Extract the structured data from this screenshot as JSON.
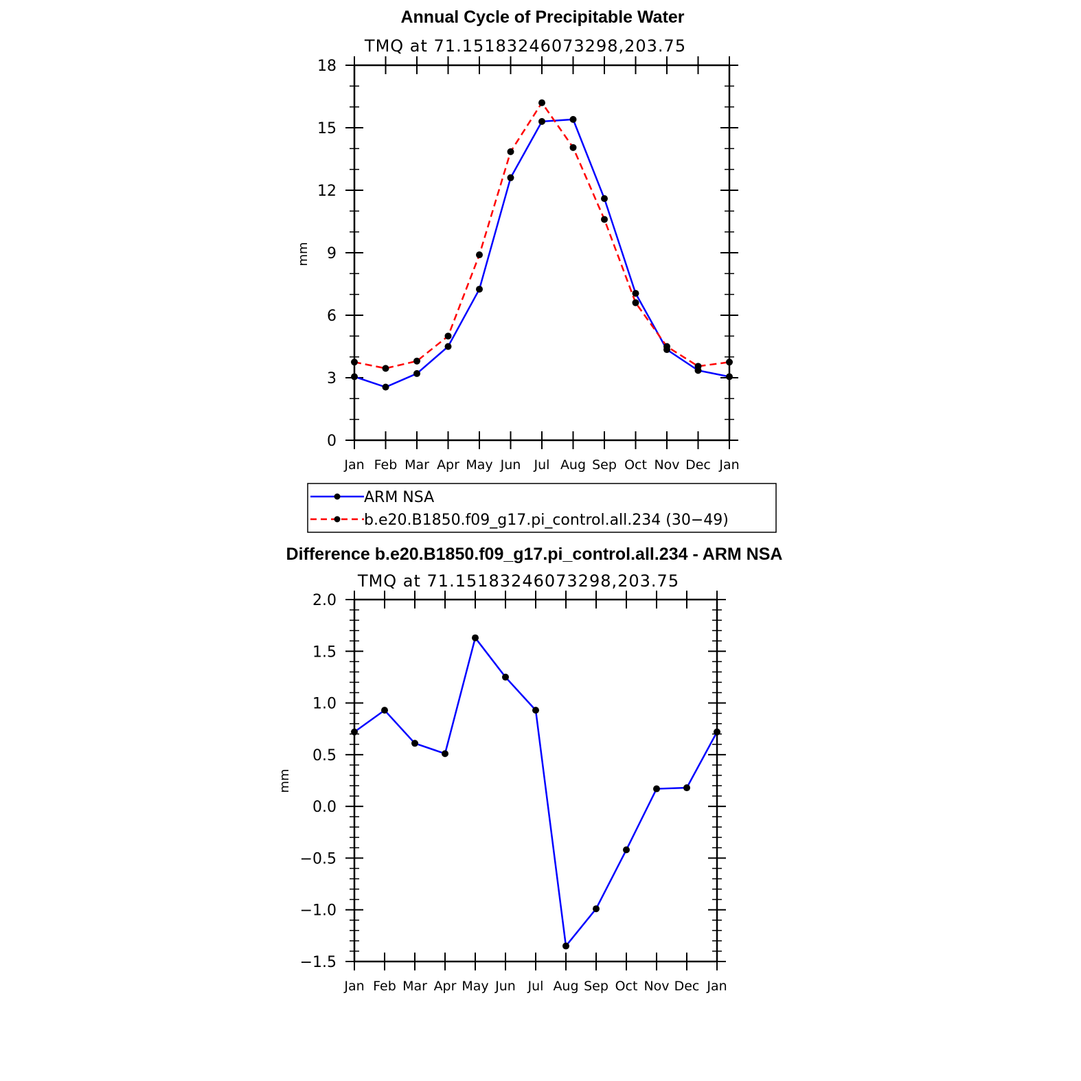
{
  "chart_data": [
    {
      "type": "line",
      "title": "Annual Cycle of Precipitable Water",
      "subtitle": "TMQ at 71.15183246073298,203.75",
      "xlabel": "",
      "ylabel": "mm",
      "categories": [
        "Jan",
        "Feb",
        "Mar",
        "Apr",
        "May",
        "Jun",
        "Jul",
        "Aug",
        "Sep",
        "Oct",
        "Nov",
        "Dec",
        "Jan"
      ],
      "ylim": [
        0,
        18
      ],
      "yticks": [
        "0",
        "3",
        "6",
        "9",
        "12",
        "15",
        "18"
      ],
      "grid": false,
      "legend": "bottom",
      "series": [
        {
          "name": "ARM NSA",
          "color": "#0000ff",
          "dash": "solid",
          "values": [
            3.05,
            2.55,
            3.2,
            4.5,
            7.25,
            12.6,
            15.3,
            15.4,
            11.6,
            7.05,
            4.35,
            3.35,
            3.05
          ]
        },
        {
          "name": "b.e20.B1850.f09_g17.pi_control.all.234 (30−49)",
          "color": "#ff0000",
          "dash": "dashed",
          "values": [
            3.75,
            3.45,
            3.8,
            5.0,
            8.9,
            13.85,
            16.2,
            14.05,
            10.6,
            6.6,
            4.5,
            3.55,
            3.75
          ]
        }
      ]
    },
    {
      "type": "line",
      "title": "Difference b.e20.B1850.f09_g17.pi_control.all.234 - ARM NSA",
      "subtitle": "TMQ at 71.15183246073298,203.75",
      "xlabel": "",
      "ylabel": "mm",
      "categories": [
        "Jan",
        "Feb",
        "Mar",
        "Apr",
        "May",
        "Jun",
        "Jul",
        "Aug",
        "Sep",
        "Oct",
        "Nov",
        "Dec",
        "Jan"
      ],
      "ylim": [
        -1.5,
        2.0
      ],
      "yticks": [
        "−1.5",
        "−1.0",
        "−0.5",
        "0.0",
        "0.5",
        "1.0",
        "1.5",
        "2.0"
      ],
      "grid": false,
      "series": [
        {
          "color": "#0000ff",
          "dash": "solid",
          "values": [
            0.72,
            0.93,
            0.61,
            0.51,
            1.63,
            1.25,
            0.93,
            -1.35,
            -0.99,
            -0.42,
            0.17,
            0.18,
            0.72
          ]
        }
      ]
    }
  ]
}
